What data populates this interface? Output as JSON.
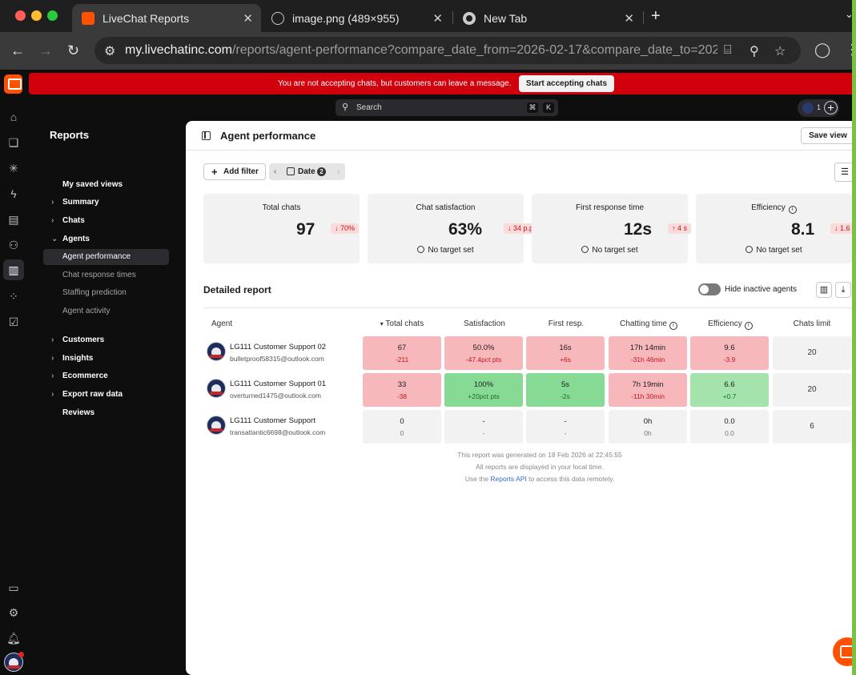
{
  "browser": {
    "tabs": [
      {
        "title": "LiveChat Reports",
        "active": true
      },
      {
        "title": "image.png (489×955)",
        "active": false
      },
      {
        "title": "New Tab",
        "active": false
      }
    ],
    "url_host": "my.livechatinc.com",
    "url_path": "/reports/agent-performance?compare_date_from=2026-02-17&compare_date_to=2026-...",
    "new_tab": "+"
  },
  "banner": {
    "text": "You are not accepting chats, but customers can leave a message.",
    "button": "Start accepting chats"
  },
  "search": {
    "placeholder": "Search",
    "kbd1": "⌘",
    "kbd2": "K"
  },
  "topbar": {
    "agent_count": "1"
  },
  "sidebar": {
    "title": "Reports",
    "items": [
      {
        "label": "My saved views",
        "type": "plain"
      },
      {
        "label": "Summary",
        "type": "collapsed"
      },
      {
        "label": "Chats",
        "type": "collapsed"
      },
      {
        "label": "Agents",
        "type": "expanded"
      },
      {
        "label": "Agent performance",
        "type": "selected"
      },
      {
        "label": "Chat response times",
        "type": "sub"
      },
      {
        "label": "Staffing prediction",
        "type": "sub"
      },
      {
        "label": "Agent activity",
        "type": "sub"
      },
      {
        "label": "Customers",
        "type": "collapsed"
      },
      {
        "label": "Insights",
        "type": "collapsed"
      },
      {
        "label": "Ecommerce",
        "type": "collapsed"
      },
      {
        "label": "Export raw data",
        "type": "collapsed"
      },
      {
        "label": "Reviews",
        "type": "plain"
      }
    ]
  },
  "main": {
    "title": "Agent performance",
    "save_view": "Save view",
    "add_filter": "Add filter",
    "date_chip": {
      "label": "Date",
      "count": "2"
    },
    "cards": [
      {
        "label": "Total chats",
        "value": "97",
        "change": "70%",
        "direction": "down",
        "target": ""
      },
      {
        "label": "Chat satisfaction",
        "value": "63%",
        "change": "34 p.p",
        "direction": "down",
        "target": "No target set"
      },
      {
        "label": "First response time",
        "value": "12s",
        "change": "4 s",
        "direction": "up",
        "target": "No target set"
      },
      {
        "label": "Efficiency",
        "value": "8.1",
        "change": "1.6",
        "direction": "down",
        "target": "No target set"
      }
    ],
    "detailed_report": {
      "title": "Detailed report",
      "hide_inactive": "Hide inactive agents",
      "columns": [
        "Agent",
        "Total chats",
        "Satisfaction",
        "First resp.",
        "Chatting time",
        "Efficiency",
        "Chats limit"
      ],
      "rows": [
        {
          "name": "LG111 Customer Support 02",
          "email": "bulletproof58315@outlook.com",
          "cells": [
            {
              "value": "67",
              "delta": "-211",
              "tone": "bad"
            },
            {
              "value": "50.0%",
              "delta": "-47.4pct pts",
              "tone": "bad"
            },
            {
              "value": "16s",
              "delta": "+6s",
              "tone": "bad"
            },
            {
              "value": "17h 14min",
              "delta": "-31h 46min",
              "tone": "bad"
            },
            {
              "value": "9.6",
              "delta": "-3.9",
              "tone": "bad"
            }
          ],
          "limit": "20"
        },
        {
          "name": "LG111 Customer Support 01",
          "email": "overturned1475@outlook.com",
          "cells": [
            {
              "value": "33",
              "delta": "-38",
              "tone": "bad"
            },
            {
              "value": "100%",
              "delta": "+20pct pts",
              "tone": "good"
            },
            {
              "value": "5s",
              "delta": "-2s",
              "tone": "good"
            },
            {
              "value": "7h 19min",
              "delta": "-11h 30min",
              "tone": "bad"
            },
            {
              "value": "6.6",
              "delta": "+0.7",
              "tone": "good2"
            }
          ],
          "limit": "20"
        },
        {
          "name": "LG111 Customer Support",
          "email": "transatlantic6698@outlook.com",
          "cells": [
            {
              "value": "0",
              "delta": "0",
              "tone": "neutral"
            },
            {
              "value": "-",
              "delta": "-",
              "tone": "neutral"
            },
            {
              "value": "-",
              "delta": "-",
              "tone": "neutral"
            },
            {
              "value": "0h",
              "delta": "0h",
              "tone": "neutral"
            },
            {
              "value": "0.0",
              "delta": "0.0",
              "tone": "neutral"
            }
          ],
          "limit": "6"
        }
      ],
      "footnotes": {
        "generated": "This report was generated on 18 Feb 2026 at 22:45:55",
        "local_time": "All reports are displayed in your local time.",
        "api_prefix": "Use the ",
        "api_link": "Reports API",
        "api_suffix": " to access this data remotely."
      }
    }
  },
  "colors": {
    "brand": "#ff5100",
    "banner": "#d1000d",
    "bad": "#f7b8bb",
    "good": "#86da93"
  }
}
